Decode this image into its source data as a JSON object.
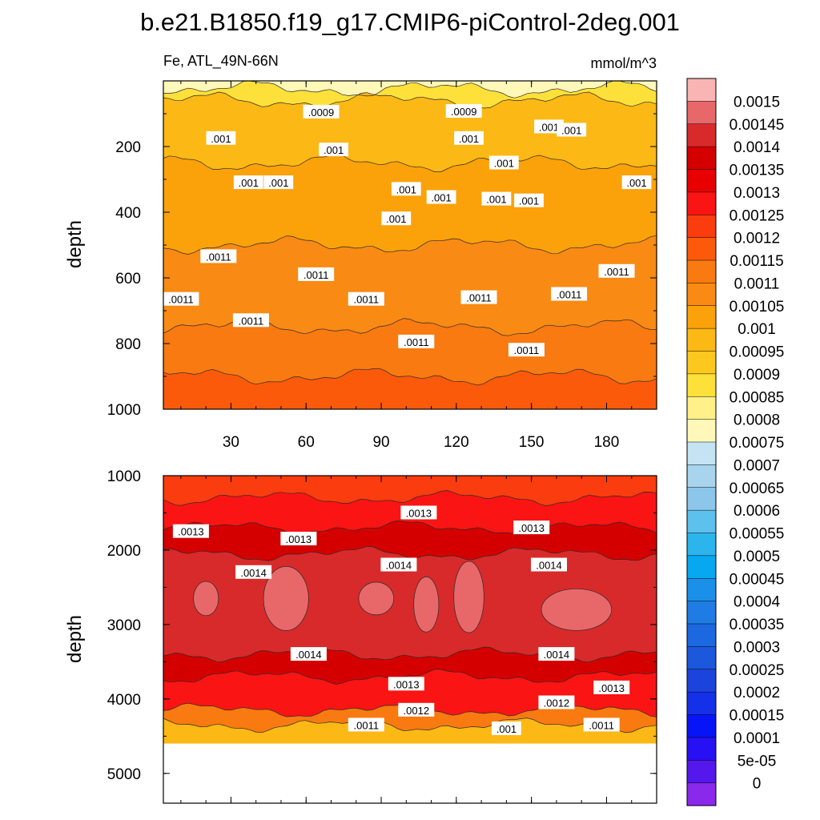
{
  "chart_data": {
    "type": "heatmap",
    "plot_kind": "contour",
    "title": "b.e21.B1850.f19_g17.CMIP6-piControl-2deg.001",
    "subtitle_left": "Fe, ATL_49N-66N",
    "subtitle_right": "mmol/m^3",
    "ylabel": "depth",
    "x_ticks": [
      "30",
      "60",
      "90",
      "120",
      "150",
      "180"
    ],
    "xlim": [
      3,
      200
    ],
    "panels": [
      {
        "name": "upper",
        "ylim": [
          1000,
          0
        ],
        "y_ticks": [
          "200",
          "400",
          "600",
          "800",
          "1000"
        ],
        "bands": [
          {
            "depth": [
              0,
              25
            ],
            "value": 0.00078
          },
          {
            "depth": [
              25,
              60
            ],
            "value": 0.00088
          },
          {
            "depth": [
              60,
              250
            ],
            "value": 0.00098
          },
          {
            "depth": [
              250,
              500
            ],
            "value": 0.001
          },
          {
            "depth": [
              500,
              750
            ],
            "value": 0.00105
          },
          {
            "depth": [
              750,
              900
            ],
            "value": 0.0011
          },
          {
            "depth": [
              900,
              1000
            ],
            "value": 0.00115
          }
        ],
        "contour_labels": [
          {
            "text": ".0009",
            "x": 66,
            "depth": 95
          },
          {
            "text": ".0009",
            "x": 123,
            "depth": 93
          },
          {
            "text": ".001",
            "x": 26,
            "depth": 175
          },
          {
            "text": ".001",
            "x": 71,
            "depth": 210
          },
          {
            "text": ".001",
            "x": 125,
            "depth": 175
          },
          {
            "text": ".001",
            "x": 157,
            "depth": 140
          },
          {
            "text": ".001",
            "x": 166,
            "depth": 150
          },
          {
            "text": ".001",
            "x": 139,
            "depth": 250
          },
          {
            "text": ".001",
            "x": 37,
            "depth": 310
          },
          {
            "text": ".001",
            "x": 49,
            "depth": 310
          },
          {
            "text": ".001",
            "x": 100,
            "depth": 330
          },
          {
            "text": ".001",
            "x": 114,
            "depth": 355
          },
          {
            "text": ".001",
            "x": 136,
            "depth": 360
          },
          {
            "text": ".001",
            "x": 149,
            "depth": 365
          },
          {
            "text": ".001",
            "x": 192,
            "depth": 310
          },
          {
            "text": ".001",
            "x": 96,
            "depth": 420
          },
          {
            "text": ".0011",
            "x": 25,
            "depth": 535
          },
          {
            "text": ".0011",
            "x": 64,
            "depth": 590
          },
          {
            "text": ".0011",
            "x": 184,
            "depth": 580
          },
          {
            "text": ".0011",
            "x": 10,
            "depth": 665
          },
          {
            "text": ".0011",
            "x": 84,
            "depth": 665
          },
          {
            "text": ".0011",
            "x": 129,
            "depth": 660
          },
          {
            "text": ".0011",
            "x": 165,
            "depth": 650
          },
          {
            "text": ".0011",
            "x": 38,
            "depth": 730
          },
          {
            "text": ".0011",
            "x": 104,
            "depth": 795
          },
          {
            "text": ".0011",
            "x": 148,
            "depth": 820
          }
        ]
      },
      {
        "name": "lower",
        "ylim": [
          5400,
          1000
        ],
        "y_ticks": [
          "1000",
          "2000",
          "3000",
          "4000",
          "5000"
        ],
        "missing_below_depth": 4600,
        "bands": [
          {
            "depth": [
              1000,
              1300
            ],
            "value": 0.00122
          },
          {
            "depth": [
              1300,
              1700
            ],
            "value": 0.00128
          },
          {
            "depth": [
              1700,
              2050
            ],
            "value": 0.00135
          },
          {
            "depth": [
              2050,
              3400
            ],
            "value": 0.00142
          },
          {
            "depth": [
              3400,
              3700
            ],
            "value": 0.00137
          },
          {
            "depth": [
              3700,
              4150
            ],
            "value": 0.00127
          },
          {
            "depth": [
              4150,
              4350
            ],
            "value": 0.00112
          },
          {
            "depth": [
              4350,
              4600
            ],
            "value": 0.00098
          }
        ],
        "contour_labels": [
          {
            "text": ".0013",
            "x": 105,
            "depth": 1500
          },
          {
            "text": ".0013",
            "x": 14,
            "depth": 1750
          },
          {
            "text": ".0013",
            "x": 57,
            "depth": 1850
          },
          {
            "text": ".0013",
            "x": 150,
            "depth": 1700
          },
          {
            "text": ".0014",
            "x": 39,
            "depth": 2300
          },
          {
            "text": ".0014",
            "x": 97,
            "depth": 2200
          },
          {
            "text": ".0014",
            "x": 157,
            "depth": 2200
          },
          {
            "text": ".0014",
            "x": 61,
            "depth": 3400
          },
          {
            "text": ".0014",
            "x": 160,
            "depth": 3400
          },
          {
            "text": ".0013",
            "x": 100,
            "depth": 3800
          },
          {
            "text": ".0013",
            "x": 182,
            "depth": 3850
          },
          {
            "text": ".0012",
            "x": 104,
            "depth": 4150
          },
          {
            "text": ".0012",
            "x": 160,
            "depth": 4050
          },
          {
            "text": ".0011",
            "x": 84,
            "depth": 4350
          },
          {
            "text": ".0011",
            "x": 178,
            "depth": 4350
          },
          {
            "text": ".001",
            "x": 140,
            "depth": 4400
          }
        ]
      }
    ],
    "colorbar": {
      "labels": [
        "0.0015",
        "0.00145",
        "0.0014",
        "0.00135",
        "0.0013",
        "0.00125",
        "0.0012",
        "0.00115",
        "0.0011",
        "0.00105",
        "0.001",
        "0.00095",
        "0.0009",
        "0.00085",
        "0.0008",
        "0.00075",
        "0.0007",
        "0.00065",
        "0.0006",
        "0.00055",
        "0.0005",
        "0.00045",
        "0.0004",
        "0.00035",
        "0.0003",
        "0.00025",
        "0.0002",
        "0.00015",
        "0.0001",
        "5e-05",
        "0"
      ],
      "colors_top_to_bottom": [
        "#f9b4b4",
        "#e8686a",
        "#d82a2a",
        "#d40000",
        "#e80000",
        "#fa1414",
        "#fb3c0e",
        "#fb5a0a",
        "#f97a10",
        "#f98a14",
        "#fba20a",
        "#fcb814",
        "#fdc81e",
        "#fde03a",
        "#fff08a",
        "#fff8b8",
        "#c4e4f4",
        "#a8d4ee",
        "#8cc6ea",
        "#5ec0ec",
        "#2cb4ec",
        "#08a8f0",
        "#1a90e8",
        "#1e7ce4",
        "#1c68e0",
        "#1c58dc",
        "#1c44dc",
        "#1430e8",
        "#0814f8",
        "#2810f4",
        "#5418ec",
        "#8a28ec"
      ]
    }
  }
}
